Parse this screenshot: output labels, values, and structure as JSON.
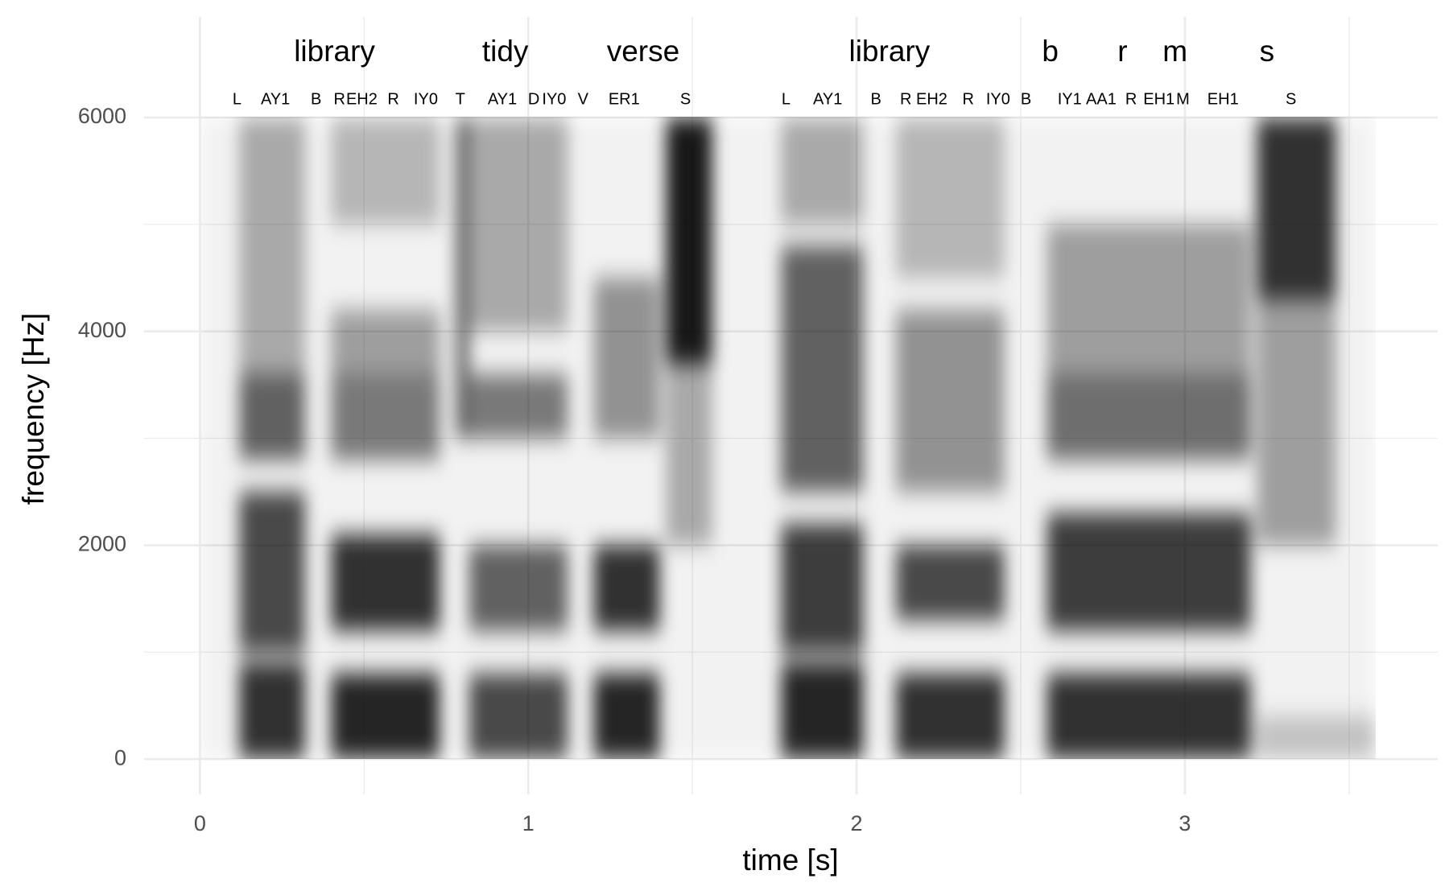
{
  "chart_data": {
    "type": "spectrogram",
    "x_label": "time [s]",
    "y_label": "frequency [Hz]",
    "xlim": [
      -0.17,
      3.77
    ],
    "ylim": [
      -330,
      6940
    ],
    "xticks": [
      0,
      1,
      2,
      3
    ],
    "yticks": [
      0,
      2000,
      4000,
      6000
    ],
    "xminor": [
      0.5,
      1.5,
      2.5,
      3.5
    ],
    "yminor": [
      1000,
      3000,
      5000
    ],
    "grid": true,
    "color": "#000000",
    "words": [
      {
        "label": "library",
        "time": 0.41
      },
      {
        "label": "tidy",
        "time": 0.93
      },
      {
        "label": "verse",
        "time": 1.35
      },
      {
        "label": "library",
        "time": 2.1
      },
      {
        "label": "b",
        "time": 2.59
      },
      {
        "label": "r",
        "time": 2.81
      },
      {
        "label": "m",
        "time": 2.97
      },
      {
        "label": "s",
        "time": 3.25
      }
    ],
    "phones": [
      {
        "label": "L",
        "time": 0.113
      },
      {
        "label": "AY1",
        "time": 0.23
      },
      {
        "label": "B",
        "time": 0.354
      },
      {
        "label": "R",
        "time": 0.425
      },
      {
        "label": "EH2",
        "time": 0.493
      },
      {
        "label": "R",
        "time": 0.589
      },
      {
        "label": "IY0",
        "time": 0.688
      },
      {
        "label": "T",
        "time": 0.793
      },
      {
        "label": "AY1",
        "time": 0.921
      },
      {
        "label": "D",
        "time": 1.017
      },
      {
        "label": "IY0",
        "time": 1.079
      },
      {
        "label": "V",
        "time": 1.167
      },
      {
        "label": "ER1",
        "time": 1.292
      },
      {
        "label": "S",
        "time": 1.479
      },
      {
        "label": "L",
        "time": 1.785
      },
      {
        "label": "AY1",
        "time": 1.912
      },
      {
        "label": "B",
        "time": 2.059
      },
      {
        "label": "R",
        "time": 2.15
      },
      {
        "label": "EH2",
        "time": 2.229
      },
      {
        "label": "R",
        "time": 2.34
      },
      {
        "label": "IY0",
        "time": 2.431
      },
      {
        "label": "B",
        "time": 2.516
      },
      {
        "label": "IY1",
        "time": 2.649
      },
      {
        "label": "AA1",
        "time": 2.745
      },
      {
        "label": "R",
        "time": 2.836
      },
      {
        "label": "EH1",
        "time": 2.921
      },
      {
        "label": "M",
        "time": 2.994
      },
      {
        "label": "EH1",
        "time": 3.116
      },
      {
        "label": "S",
        "time": 3.323
      }
    ],
    "energy": [
      [
        0,
        3.58,
        0,
        6000,
        0.05
      ],
      [
        0.12,
        0.32,
        0,
        900,
        0.8
      ],
      [
        0.12,
        0.32,
        1000,
        2500,
        0.7
      ],
      [
        0.12,
        0.32,
        2800,
        3600,
        0.6
      ],
      [
        0.12,
        0.32,
        3600,
        6000,
        0.3
      ],
      [
        0.4,
        0.73,
        0,
        800,
        0.85
      ],
      [
        0.4,
        0.73,
        1200,
        2100,
        0.8
      ],
      [
        0.4,
        0.73,
        2800,
        3600,
        0.5
      ],
      [
        0.4,
        0.73,
        3600,
        4200,
        0.35
      ],
      [
        0.4,
        0.73,
        5000,
        6000,
        0.25
      ],
      [
        0.78,
        0.82,
        3000,
        6000,
        0.6
      ],
      [
        0.82,
        1.12,
        0,
        800,
        0.7
      ],
      [
        0.82,
        1.12,
        1200,
        2000,
        0.6
      ],
      [
        0.82,
        1.12,
        3000,
        3600,
        0.5
      ],
      [
        0.82,
        1.12,
        4000,
        6000,
        0.3
      ],
      [
        1.2,
        1.4,
        0,
        800,
        0.85
      ],
      [
        1.2,
        1.4,
        1200,
        2000,
        0.8
      ],
      [
        1.2,
        1.4,
        3000,
        4500,
        0.4
      ],
      [
        1.42,
        1.56,
        3700,
        6000,
        0.9
      ],
      [
        1.42,
        1.56,
        2000,
        3700,
        0.3
      ],
      [
        1.77,
        2.02,
        0,
        900,
        0.85
      ],
      [
        1.77,
        2.02,
        1000,
        2200,
        0.75
      ],
      [
        1.77,
        2.02,
        2500,
        4800,
        0.6
      ],
      [
        1.77,
        2.02,
        5000,
        6000,
        0.3
      ],
      [
        2.12,
        2.45,
        0,
        800,
        0.8
      ],
      [
        2.12,
        2.45,
        1300,
        2000,
        0.7
      ],
      [
        2.12,
        2.45,
        2500,
        4200,
        0.4
      ],
      [
        2.12,
        2.45,
        4500,
        6000,
        0.25
      ],
      [
        2.58,
        3.2,
        0,
        800,
        0.8
      ],
      [
        2.58,
        3.2,
        1200,
        2300,
        0.75
      ],
      [
        2.58,
        3.2,
        2800,
        3600,
        0.55
      ],
      [
        2.58,
        3.2,
        3600,
        5000,
        0.35
      ],
      [
        3.22,
        3.46,
        4300,
        6000,
        0.8
      ],
      [
        3.22,
        3.46,
        2000,
        4300,
        0.35
      ],
      [
        3.22,
        3.58,
        0,
        400,
        0.2
      ]
    ]
  }
}
